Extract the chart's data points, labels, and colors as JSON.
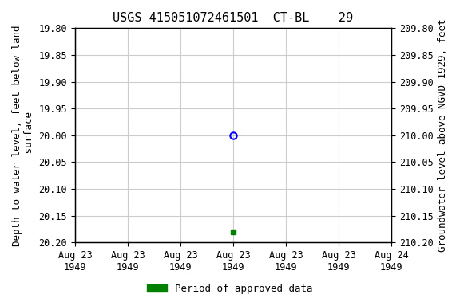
{
  "title": "USGS 415051072461501  CT-BL    29",
  "ylabel_left": "Depth to water level, feet below land\n surface",
  "ylabel_right": "Groundwater level above NGVD 1929, feet",
  "ylim_left": [
    19.8,
    20.2
  ],
  "ylim_right": [
    210.2,
    209.8
  ],
  "yticks_left": [
    19.8,
    19.85,
    19.9,
    19.95,
    20.0,
    20.05,
    20.1,
    20.15,
    20.2
  ],
  "yticks_right": [
    210.2,
    210.15,
    210.1,
    210.05,
    210.0,
    209.95,
    209.9,
    209.85,
    209.8
  ],
  "ytick_labels_right": [
    "210.20",
    "210.15",
    "210.10",
    "210.05",
    "210.00",
    "209.95",
    "209.90",
    "209.85",
    "209.80"
  ],
  "data_point_open": {
    "x_numeric": 3,
    "value": 20.0
  },
  "data_point_filled": {
    "x_numeric": 3,
    "value": 20.18
  },
  "open_marker_color": "blue",
  "filled_marker_color": "green",
  "background_color": "white",
  "grid_color": "#cccccc",
  "legend_label": "Period of approved data",
  "legend_color": "green",
  "font_family": "monospace",
  "title_fontsize": 11,
  "axis_label_fontsize": 9,
  "tick_fontsize": 8.5,
  "legend_fontsize": 9,
  "xtick_labels": [
    "Aug 23\n1949",
    "Aug 23\n1949",
    "Aug 23\n1949",
    "Aug 23\n1949",
    "Aug 23\n1949",
    "Aug 23\n1949",
    "Aug 24\n1949"
  ],
  "xlim": [
    0,
    6
  ],
  "xticks": [
    0,
    1,
    2,
    3,
    4,
    5,
    6
  ]
}
